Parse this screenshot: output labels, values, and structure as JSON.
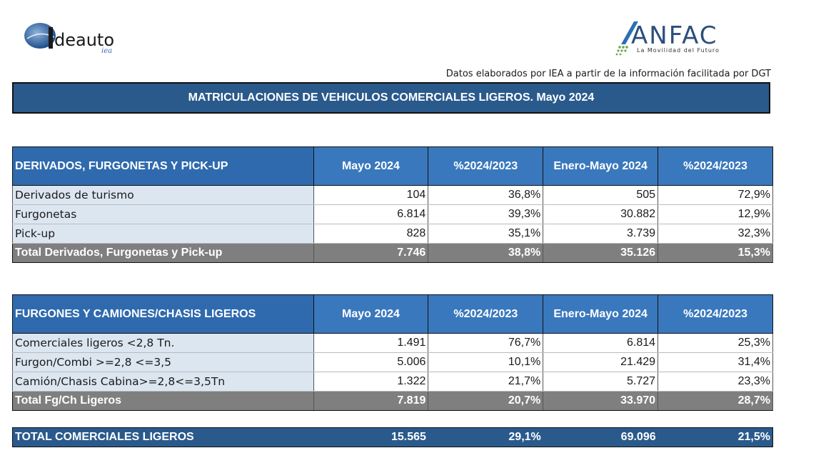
{
  "logos": {
    "ideauto": {
      "name": "deauto",
      "sub": "iea"
    },
    "anfac": {
      "name": "ANFAC",
      "tagline": "La Movilidad del Futuro"
    }
  },
  "source_note": "Datos elaborados por IEA a partir de la información facilitada por DGT",
  "title": "MATRICULACIONES DE VEHICULOS COMERCIALES LIGEROS. Mayo 2024",
  "tables": [
    {
      "header": [
        "DERIVADOS, FURGONETAS Y PICK-UP",
        "Mayo 2024",
        "%2024/2023",
        "Enero-Mayo 2024",
        "%2024/2023"
      ],
      "rows": [
        [
          "Derivados de turismo",
          "104",
          "36,8%",
          "505",
          "72,9%"
        ],
        [
          "Furgonetas",
          "6.814",
          "39,3%",
          "30.882",
          "12,9%"
        ],
        [
          "Pick-up",
          "828",
          "35,1%",
          "3.739",
          "32,3%"
        ]
      ],
      "total": [
        "Total Derivados, Furgonetas y Pick-up",
        "7.746",
        "38,8%",
        "35.126",
        "15,3%"
      ]
    },
    {
      "header": [
        "FURGONES Y CAMIONES/CHASIS LIGEROS",
        "Mayo 2024",
        "%2024/2023",
        "Enero-Mayo 2024",
        "%2024/2023"
      ],
      "rows": [
        [
          "Comerciales ligeros <2,8 Tn.",
          "1.491",
          "76,7%",
          "6.814",
          "25,3%"
        ],
        [
          "Furgon/Combi >=2,8 <=3,5",
          "5.006",
          "10,1%",
          "21.429",
          "31,4%"
        ],
        [
          "Camión/Chasis Cabina>=2,8<=3,5Tn",
          "1.322",
          "21,7%",
          "5.727",
          "23,3%"
        ]
      ],
      "total": [
        "Total Fg/Ch Ligeros",
        "7.819",
        "20,7%",
        "33.970",
        "28,7%"
      ]
    }
  ],
  "grand_total": [
    "TOTAL COMERCIALES LIGEROS",
    "15.565",
    "29,1%",
    "69.096",
    "21,5%"
  ]
}
